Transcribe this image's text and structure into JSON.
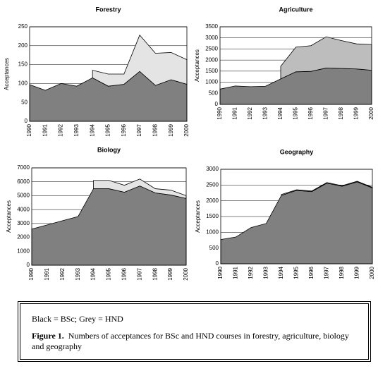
{
  "chart_data": [
    {
      "type": "area",
      "stacked": true,
      "title": "Forestry",
      "y_label": "Acceptances",
      "categories": [
        "1990",
        "1991",
        "1992",
        "1993",
        "1994",
        "1995",
        "1996",
        "1997",
        "1998",
        "1999",
        "2000"
      ],
      "series": [
        {
          "color": "#808080",
          "values": [
            97,
            82,
            100,
            93,
            115,
            93,
            98,
            132,
            95,
            110,
            98
          ]
        },
        {
          "color": "#e4e4e4",
          "values": [
            null,
            null,
            null,
            null,
            20,
            32,
            27,
            96,
            85,
            72,
            65
          ]
        }
      ],
      "ylim": [
        0,
        250
      ],
      "yticks": [
        0,
        50,
        100,
        150,
        200,
        250
      ],
      "grid": true
    },
    {
      "type": "area",
      "stacked": true,
      "title": "Agriculture",
      "y_label": "Acceptances",
      "categories": [
        "1990",
        "1991",
        "1992",
        "1993",
        "1994",
        "1995",
        "1996",
        "1997",
        "1998",
        "1999",
        "2000"
      ],
      "series": [
        {
          "color": "#808080",
          "values": [
            690,
            830,
            800,
            820,
            1150,
            1470,
            1490,
            1640,
            1620,
            1600,
            1540
          ]
        },
        {
          "color": "#bdbdbd",
          "values": [
            null,
            null,
            null,
            null,
            570,
            1110,
            1160,
            1410,
            1260,
            1130,
            1160
          ]
        }
      ],
      "ylim": [
        0,
        3500
      ],
      "yticks": [
        0,
        500,
        1000,
        1500,
        2000,
        2500,
        3000,
        3500
      ],
      "grid": true
    },
    {
      "type": "area",
      "stacked": true,
      "title": "Biology",
      "y_label": "Acceptances",
      "categories": [
        "1990",
        "1991",
        "1992",
        "1993",
        "1994",
        "1995",
        "1996",
        "1997",
        "1998",
        "1999",
        "2000"
      ],
      "series": [
        {
          "color": "#808080",
          "values": [
            2600,
            2900,
            3200,
            3500,
            5500,
            5500,
            5250,
            5700,
            5200,
            5050,
            4800
          ]
        },
        {
          "color": "#e4e4e4",
          "values": [
            null,
            null,
            null,
            null,
            600,
            600,
            500,
            500,
            300,
            350,
            200
          ]
        }
      ],
      "ylim": [
        0,
        7000
      ],
      "yticks": [
        0,
        1000,
        2000,
        3000,
        4000,
        5000,
        6000,
        7000
      ],
      "grid": true
    },
    {
      "type": "area",
      "stacked": true,
      "title": "Geography",
      "y_label": "Acceptances",
      "categories": [
        "1990",
        "1991",
        "1992",
        "1993",
        "1994",
        "1995",
        "1996",
        "1997",
        "1998",
        "1999",
        "2000"
      ],
      "series": [
        {
          "color": "#808080",
          "values": [
            770,
            850,
            1150,
            1280,
            2170,
            2330,
            2290,
            2560,
            2460,
            2600,
            2410
          ]
        },
        {
          "color": "#bdbdbd",
          "values": [
            null,
            null,
            null,
            null,
            30,
            20,
            20,
            20,
            20,
            20,
            20
          ]
        }
      ],
      "ylim": [
        0,
        3000
      ],
      "yticks": [
        0,
        500,
        1000,
        1500,
        2000,
        2500,
        3000
      ],
      "grid": true
    }
  ],
  "caption": {
    "legend": "Black = BSc; Grey = HND",
    "label": "Figure 1.",
    "text": "Numbers of acceptances for BSc and HND courses in forestry, agriculture, biology and geography"
  }
}
